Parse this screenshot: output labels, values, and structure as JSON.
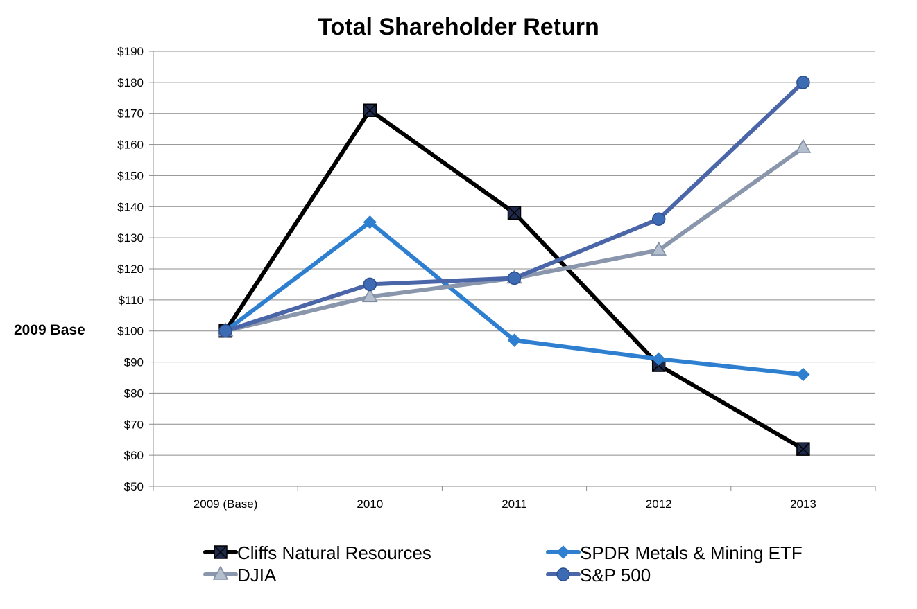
{
  "chart_data": {
    "type": "line",
    "title": "Total Shareholder Return",
    "xlabel": "",
    "ylabel": "2009 Base",
    "categories": [
      "2009 (Base)",
      "2010",
      "2011",
      "2012",
      "2013"
    ],
    "ylim": [
      50,
      190
    ],
    "ytick_step": 10,
    "ytick_labels": [
      "$50",
      "$60",
      "$70",
      "$80",
      "$90",
      "$100",
      "$110",
      "$120",
      "$130",
      "$140",
      "$150",
      "$160",
      "$170",
      "$180",
      "$190"
    ],
    "grid": true,
    "legend_position": "bottom",
    "series": [
      {
        "name": "Cliffs Natural Resources",
        "values": [
          100,
          171,
          138,
          89,
          62
        ],
        "color": "#000000",
        "marker": "square",
        "marker_fill": "#1f2a4a"
      },
      {
        "name": "SPDR Metals & Mining ETF",
        "values": [
          100,
          135,
          97,
          91,
          86
        ],
        "color": "#2e7fd0",
        "marker": "diamond",
        "marker_fill": "#2e7fd0"
      },
      {
        "name": "DJIA",
        "values": [
          100,
          111,
          117,
          126,
          159
        ],
        "color": "#8a96ab",
        "marker": "triangle",
        "marker_fill": "#b4bfce"
      },
      {
        "name": "S&P 500",
        "values": [
          100,
          115,
          117,
          136,
          180
        ],
        "color": "#4a66a8",
        "marker": "circle",
        "marker_fill": "#3d6cb5"
      }
    ]
  }
}
